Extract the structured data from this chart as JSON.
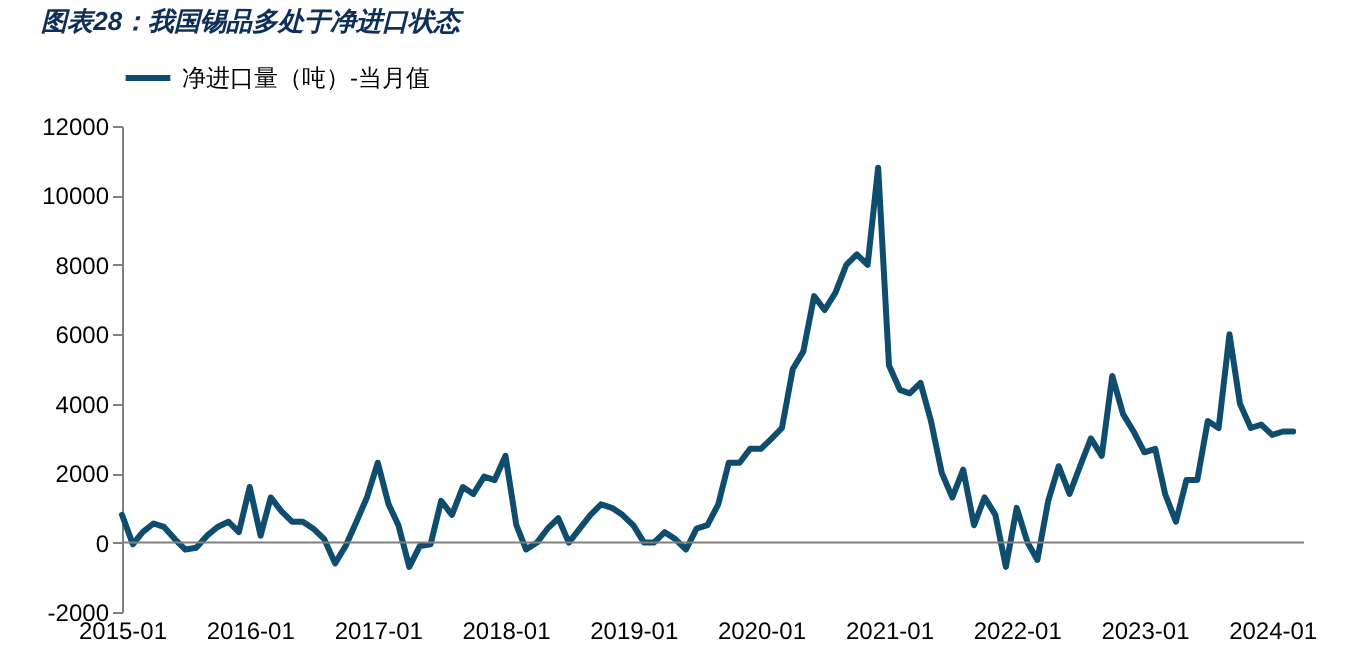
{
  "chart_data": {
    "type": "line",
    "title": "图表28：我国锡品多处于净进口状态",
    "x": [
      "2015-01",
      "2015-02",
      "2015-03",
      "2015-04",
      "2015-05",
      "2015-06",
      "2015-07",
      "2015-08",
      "2015-09",
      "2015-10",
      "2015-11",
      "2015-12",
      "2016-01",
      "2016-02",
      "2016-03",
      "2016-04",
      "2016-05",
      "2016-06",
      "2016-07",
      "2016-08",
      "2016-09",
      "2016-10",
      "2016-11",
      "2016-12",
      "2017-01",
      "2017-02",
      "2017-03",
      "2017-04",
      "2017-05",
      "2017-06",
      "2017-07",
      "2017-08",
      "2017-09",
      "2017-10",
      "2017-11",
      "2017-12",
      "2018-01",
      "2018-02",
      "2018-03",
      "2018-04",
      "2018-05",
      "2018-06",
      "2018-07",
      "2018-08",
      "2018-09",
      "2018-10",
      "2018-11",
      "2018-12",
      "2019-01",
      "2019-02",
      "2019-03",
      "2019-04",
      "2019-05",
      "2019-06",
      "2019-07",
      "2019-08",
      "2019-09",
      "2019-10",
      "2019-11",
      "2019-12",
      "2020-01",
      "2020-02",
      "2020-03",
      "2020-04",
      "2020-05",
      "2020-06",
      "2020-07",
      "2020-08",
      "2020-09",
      "2020-10",
      "2020-11",
      "2020-12",
      "2021-01",
      "2021-02",
      "2021-03",
      "2021-04",
      "2021-05",
      "2021-06",
      "2021-07",
      "2021-08",
      "2021-09",
      "2021-10",
      "2021-11",
      "2021-12",
      "2022-01",
      "2022-02",
      "2022-03",
      "2022-04",
      "2022-05",
      "2022-06",
      "2022-07",
      "2022-08",
      "2022-09",
      "2022-10",
      "2022-11",
      "2022-12",
      "2023-01",
      "2023-02",
      "2023-03",
      "2023-04",
      "2023-05",
      "2023-06",
      "2023-07",
      "2023-08",
      "2023-09",
      "2023-10",
      "2023-11",
      "2023-12",
      "2024-01",
      "2024-02",
      "2024-03"
    ],
    "series": [
      {
        "name": "净进口量（吨）-当月值",
        "color": "#0e4d6e",
        "values": [
          800,
          -50,
          300,
          550,
          450,
          100,
          -200,
          -150,
          200,
          450,
          600,
          300,
          1600,
          200,
          1300,
          900,
          600,
          600,
          400,
          100,
          -600,
          -100,
          600,
          1300,
          2300,
          1100,
          500,
          -700,
          -100,
          -50,
          1200,
          800,
          1600,
          1400,
          1900,
          1800,
          2500,
          500,
          -200,
          0,
          400,
          700,
          0,
          400,
          800,
          1100,
          1000,
          800,
          500,
          0,
          0,
          300,
          100,
          -200,
          400,
          500,
          1100,
          2300,
          2300,
          2700,
          2700,
          3000,
          3300,
          5000,
          5500,
          7100,
          6700,
          7200,
          8000,
          8300,
          8000,
          10800,
          5100,
          4400,
          4300,
          4600,
          3500,
          2000,
          1300,
          2100,
          500,
          1300,
          800,
          -700,
          1000,
          0,
          -500,
          1200,
          2200,
          1400,
          2200,
          3000,
          2500,
          4800,
          3700,
          3200,
          2600,
          2700,
          1400,
          600,
          1800,
          1800,
          3500,
          3300,
          6000,
          4000,
          3300,
          3400,
          3100,
          3200,
          3200
        ]
      }
    ],
    "xlim": [
      "2015-01",
      "2024-04"
    ],
    "xticks": [
      {
        "value": "2015-01",
        "label": "2015-01"
      },
      {
        "value": "2016-01",
        "label": "2016-01"
      },
      {
        "value": "2017-01",
        "label": "2017-01"
      },
      {
        "value": "2018-01",
        "label": "2018-01"
      },
      {
        "value": "2019-01",
        "label": "2019-01"
      },
      {
        "value": "2020-01",
        "label": "2020-01"
      },
      {
        "value": "2021-01",
        "label": "2021-01"
      },
      {
        "value": "2022-01",
        "label": "2022-01"
      },
      {
        "value": "2023-01",
        "label": "2023-01"
      },
      {
        "value": "2024-01",
        "label": "2024-01"
      }
    ],
    "ylim": [
      -2000,
      12000
    ],
    "yticks": [
      -2000,
      0,
      2000,
      4000,
      6000,
      8000,
      10000,
      12000
    ],
    "ref_lines": [
      {
        "axis": "y",
        "value": 0,
        "color": "#808080"
      }
    ],
    "grid": false,
    "legend": "top",
    "marker": "none",
    "line_style": "solid"
  }
}
